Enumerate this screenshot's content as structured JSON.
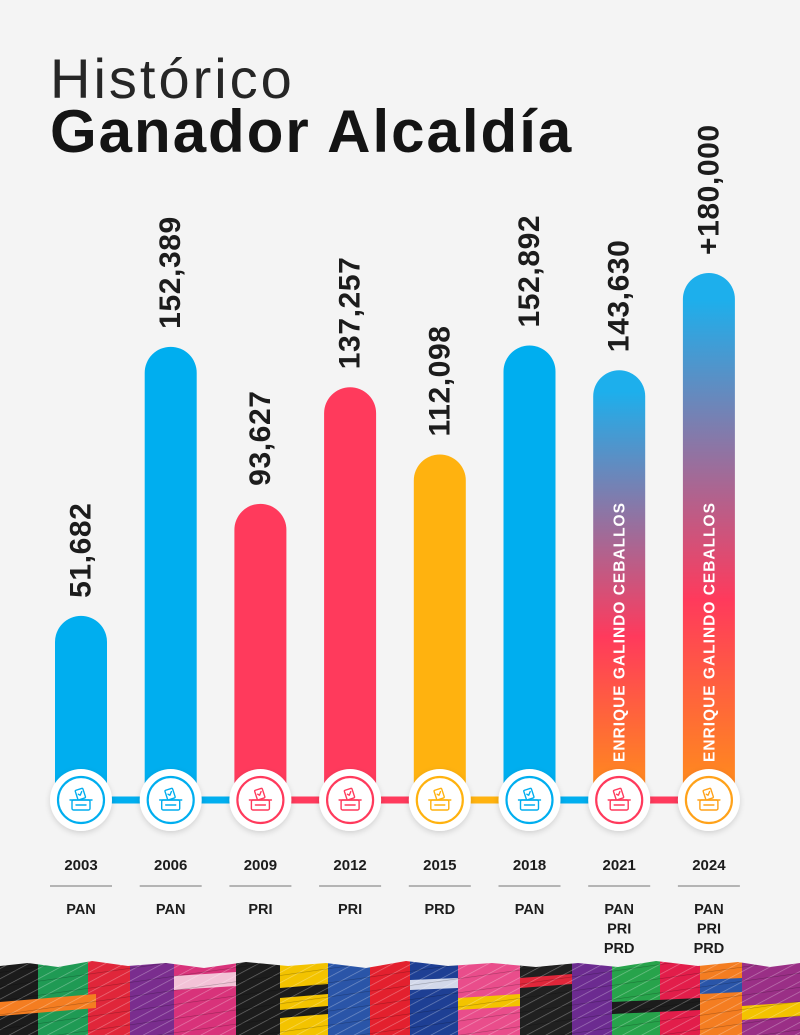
{
  "chart_data": {
    "type": "bar",
    "title": "Histórico",
    "subtitle": "Ganador Alcaldía",
    "categories": [
      "2003",
      "2006",
      "2009",
      "2012",
      "2015",
      "2018",
      "2021",
      "2024"
    ],
    "values": [
      51682,
      152389,
      93627,
      137257,
      112098,
      152892,
      143630,
      180000
    ],
    "value_labels": [
      "51,682",
      "152,389",
      "93,627",
      "137,257",
      "112,098",
      "152,892",
      "143,630",
      "+180,000"
    ],
    "parties": [
      [
        "PAN"
      ],
      [
        "PAN"
      ],
      [
        "PRI"
      ],
      [
        "PRI"
      ],
      [
        "PRD"
      ],
      [
        "PAN"
      ],
      [
        "PAN",
        "PRI",
        "PRD"
      ],
      [
        "PAN",
        "PRI",
        "PRD"
      ]
    ],
    "annotations": [
      "",
      "",
      "",
      "",
      "",
      "",
      "ENRIQUE GALINDO CEBALLOS",
      "ENRIQUE GALINDO CEBALLOS"
    ],
    "bar_colors": [
      [
        "#00AEEF"
      ],
      [
        "#00AEEF"
      ],
      [
        "#FF3A5C"
      ],
      [
        "#FF3A5C"
      ],
      [
        "#FFB20F"
      ],
      [
        "#00AEEF"
      ],
      [
        "#1DAFEC",
        "#FF3A5C",
        "#FF8A1E"
      ],
      [
        "#1DAFEC",
        "#FF3A5C",
        "#FF8A1E"
      ]
    ],
    "marker_colors": [
      "#00AEEF",
      "#00AEEF",
      "#FF3A5C",
      "#FF3A5C",
      "#FFB20F",
      "#00AEEF",
      "#FF3A5C",
      "#FFA21A"
    ],
    "marker_icon": "ballot-box-icon",
    "grid": false
  },
  "theme": {
    "background": "#F4F4F4",
    "text": "#1C1C1C"
  }
}
